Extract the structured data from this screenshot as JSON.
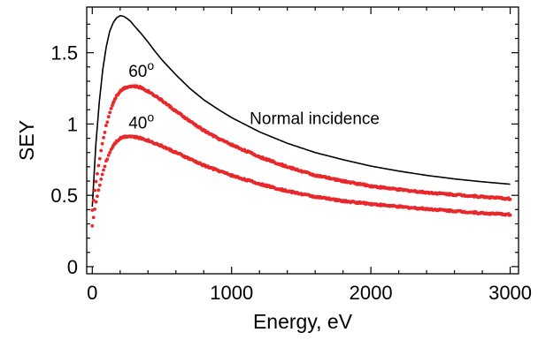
{
  "chart_data": {
    "type": "line",
    "title": "",
    "xlabel": "Energy, eV",
    "ylabel": "SEY",
    "xlim": [
      -40,
      3060
    ],
    "ylim": [
      -0.05,
      1.82
    ],
    "xticks": [
      0,
      1000,
      2000,
      3000
    ],
    "xtick_labels": [
      "0",
      "1000",
      "2000",
      "3000"
    ],
    "yticks": [
      0,
      0.5,
      1,
      1.5
    ],
    "ytick_labels": [
      "0",
      "0.5",
      "1",
      "1.5"
    ],
    "grid": false,
    "legend": "none",
    "colors": {
      "normal": "#000000",
      "measured": "#e8282b",
      "frame": "#000000"
    },
    "annotations": [
      {
        "text": "Normal incidence",
        "x": 1130,
        "y": 1.0
      },
      {
        "text": "60",
        "sup": "o",
        "x": 260,
        "y": 1.33
      },
      {
        "text": "40",
        "sup": "o",
        "x": 260,
        "y": 0.97
      }
    ],
    "series": [
      {
        "id": "normal",
        "style": "line",
        "x": [
          0,
          25,
          50,
          75,
          100,
          125,
          150,
          175,
          200,
          225,
          250,
          275,
          300,
          350,
          400,
          450,
          500,
          600,
          700,
          800,
          900,
          1000,
          1200,
          1400,
          1600,
          1800,
          2000,
          2200,
          2400,
          2600,
          2800,
          3000
        ],
        "values": [
          0.42,
          0.85,
          1.15,
          1.38,
          1.54,
          1.65,
          1.71,
          1.745,
          1.76,
          1.755,
          1.74,
          1.72,
          1.69,
          1.635,
          1.575,
          1.51,
          1.45,
          1.345,
          1.25,
          1.17,
          1.105,
          1.045,
          0.945,
          0.865,
          0.8,
          0.75,
          0.705,
          0.67,
          0.64,
          0.615,
          0.595,
          0.578
        ]
      },
      {
        "id": "incidence-60",
        "style": "dots",
        "x": [
          0,
          25,
          50,
          75,
          100,
          125,
          150,
          175,
          200,
          225,
          250,
          275,
          300,
          325,
          350,
          400,
          450,
          500,
          600,
          700,
          800,
          900,
          1000,
          1200,
          1400,
          1600,
          1800,
          2000,
          2200,
          2400,
          2600,
          2800,
          3000
        ],
        "values": [
          0.4,
          0.58,
          0.74,
          0.88,
          0.99,
          1.08,
          1.15,
          1.2,
          1.23,
          1.25,
          1.26,
          1.265,
          1.265,
          1.26,
          1.255,
          1.23,
          1.2,
          1.165,
          1.09,
          1.02,
          0.955,
          0.9,
          0.855,
          0.77,
          0.7,
          0.64,
          0.6,
          0.565,
          0.54,
          0.52,
          0.505,
          0.49,
          0.475
        ]
      },
      {
        "id": "incidence-40",
        "style": "dots",
        "x": [
          0,
          25,
          50,
          75,
          100,
          125,
          150,
          175,
          200,
          225,
          250,
          275,
          300,
          325,
          350,
          400,
          450,
          500,
          600,
          700,
          800,
          900,
          1000,
          1200,
          1400,
          1600,
          1800,
          2000,
          2200,
          2400,
          2600,
          2800,
          3000
        ],
        "values": [
          0.29,
          0.44,
          0.56,
          0.66,
          0.74,
          0.8,
          0.85,
          0.88,
          0.9,
          0.91,
          0.915,
          0.915,
          0.91,
          0.905,
          0.9,
          0.885,
          0.865,
          0.845,
          0.8,
          0.755,
          0.71,
          0.675,
          0.64,
          0.58,
          0.53,
          0.49,
          0.46,
          0.44,
          0.42,
          0.405,
          0.39,
          0.375,
          0.365
        ]
      }
    ]
  }
}
